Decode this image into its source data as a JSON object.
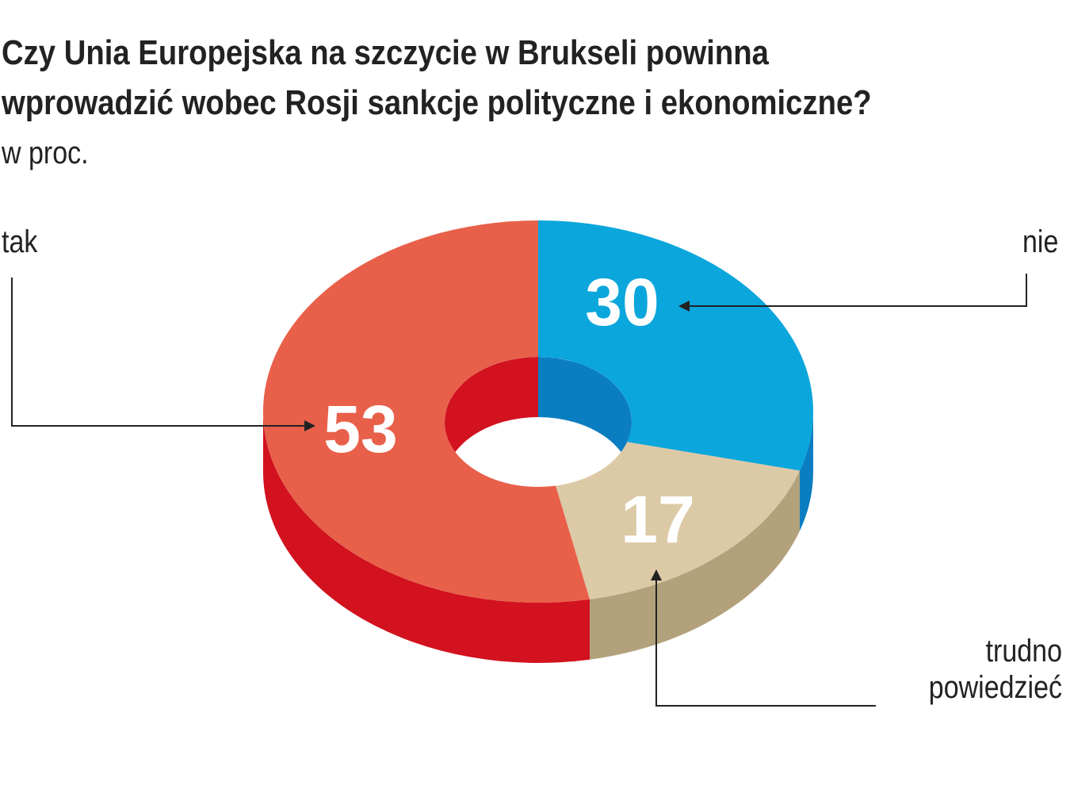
{
  "chart_data": {
    "type": "pie",
    "title": [
      "Czy Unia Europejska na szczycie w Brukseli powinna",
      "wprowadzić wobec Rosji sankcje polityczne i ekonomiczne?"
    ],
    "subtitle": "w proc.",
    "categories": [
      "nie",
      "trudno powiedzieć",
      "tak"
    ],
    "values": [
      30,
      17,
      53
    ],
    "colors": [
      "#0aa6dc",
      "#dcc9a6",
      "#e8604a"
    ],
    "side_colors": [
      "#0b7ec2",
      "#b3a17c",
      "#d2121f"
    ]
  }
}
